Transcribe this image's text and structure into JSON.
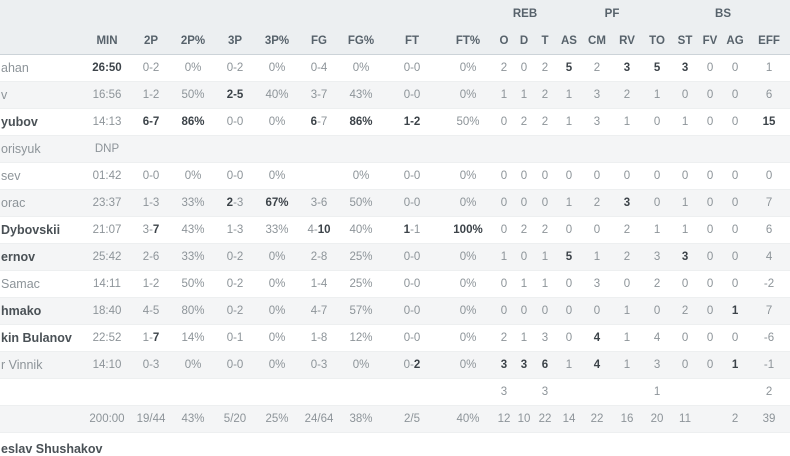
{
  "table": {
    "group_headers": [
      {
        "label": "REB"
      },
      {
        "label": "PF"
      },
      {
        "label": "BS"
      }
    ],
    "columns": [
      "MIN",
      "2P",
      "2P%",
      "3P",
      "3P%",
      "FG",
      "FG%",
      "FT",
      "FT%",
      "O",
      "D",
      "T",
      "AS",
      "CM",
      "RV",
      "TO",
      "ST",
      "FV",
      "AG",
      "EFF"
    ],
    "rows": [
      {
        "name": "ahan",
        "name_bold": false,
        "type": "player",
        "cells": [
          "**26:50**",
          "0-2",
          "0%",
          "0-2",
          "0%",
          "0-4",
          "0%",
          "0-0",
          "0%",
          "2",
          "0",
          "2",
          "**5**",
          "2",
          "**3**",
          "**5**",
          "**3**",
          "0",
          "0",
          "1"
        ]
      },
      {
        "name": "v",
        "name_bold": false,
        "type": "player",
        "cells": [
          "16:56",
          "1-2",
          "50%",
          "**2-5**",
          "40%",
          "3-7",
          "43%",
          "0-0",
          "0%",
          "1",
          "1",
          "2",
          "1",
          "3",
          "2",
          "1",
          "0",
          "0",
          "0",
          "6"
        ]
      },
      {
        "name": "yubov",
        "name_bold": true,
        "type": "player",
        "cells": [
          "14:13",
          "**6-7**",
          "**86%**",
          "0-0",
          "0%",
          "**6**-7",
          "**86%**",
          "**1-2**",
          "50%",
          "0",
          "2",
          "2",
          "1",
          "3",
          "1",
          "0",
          "1",
          "0",
          "0",
          "**15**"
        ]
      },
      {
        "name": "orisyuk",
        "name_bold": false,
        "type": "player",
        "cells": [
          "DNP",
          "",
          "",
          "",
          "",
          "",
          "",
          "",
          "",
          "",
          "",
          "",
          "",
          "",
          "",
          "",
          "",
          "",
          "",
          ""
        ]
      },
      {
        "name": "sev",
        "name_bold": false,
        "type": "player",
        "cells": [
          "01:42",
          "0-0",
          "0%",
          "0-0",
          "0%",
          "",
          "0%",
          "0-0",
          "0%",
          "0",
          "0",
          "0",
          "0",
          "0",
          "0",
          "0",
          "0",
          "0",
          "0",
          "0"
        ]
      },
      {
        "name": "orac",
        "name_bold": false,
        "type": "player",
        "cells": [
          "23:37",
          "1-3",
          "33%",
          "**2**-3",
          "**67%**",
          "3-6",
          "50%",
          "0-0",
          "0%",
          "0",
          "0",
          "0",
          "1",
          "2",
          "**3**",
          "0",
          "1",
          "0",
          "0",
          "7"
        ]
      },
      {
        "name": "Dybovskii",
        "name_bold": true,
        "type": "player",
        "cells": [
          "21:07",
          "3-**7**",
          "43%",
          "1-3",
          "33%",
          "4-**10**",
          "40%",
          "**1**-1",
          "**100%**",
          "0",
          "2",
          "2",
          "0",
          "0",
          "2",
          "1",
          "1",
          "0",
          "0",
          "6"
        ]
      },
      {
        "name": "ernov",
        "name_bold": true,
        "type": "player",
        "cells": [
          "25:42",
          "2-6",
          "33%",
          "0-2",
          "0%",
          "2-8",
          "25%",
          "0-0",
          "0%",
          "1",
          "0",
          "1",
          "**5**",
          "1",
          "2",
          "3",
          "**3**",
          "0",
          "0",
          "4"
        ]
      },
      {
        "name": "Samac",
        "name_bold": false,
        "type": "player",
        "cells": [
          "14:11",
          "1-2",
          "50%",
          "0-2",
          "0%",
          "1-4",
          "25%",
          "0-0",
          "0%",
          "0",
          "1",
          "1",
          "0",
          "3",
          "0",
          "2",
          "0",
          "0",
          "0",
          "-2"
        ]
      },
      {
        "name": "hmako",
        "name_bold": true,
        "type": "player",
        "cells": [
          "18:40",
          "4-5",
          "80%",
          "0-2",
          "0%",
          "4-7",
          "57%",
          "0-0",
          "0%",
          "0",
          "0",
          "0",
          "0",
          "0",
          "1",
          "0",
          "2",
          "0",
          "**1**",
          "7"
        ]
      },
      {
        "name": "kin Bulanov",
        "name_bold": true,
        "type": "player",
        "cells": [
          "22:52",
          "1-**7**",
          "14%",
          "0-1",
          "0%",
          "1-8",
          "12%",
          "0-0",
          "0%",
          "2",
          "1",
          "3",
          "0",
          "**4**",
          "1",
          "4",
          "0",
          "0",
          "0",
          "-6"
        ]
      },
      {
        "name": "r Vinnik",
        "name_bold": false,
        "type": "player",
        "cells": [
          "14:10",
          "0-3",
          "0%",
          "0-0",
          "0%",
          "0-3",
          "0%",
          "0-**2**",
          "0%",
          "**3**",
          "**3**",
          "**6**",
          "1",
          "**4**",
          "1",
          "3",
          "0",
          "0",
          "**1**",
          "-1"
        ]
      },
      {
        "name": "",
        "name_bold": false,
        "type": "team",
        "cells": [
          "",
          "",
          "",
          "",
          "",
          "",
          "",
          "",
          "",
          "3",
          "",
          "3",
          "",
          "",
          "",
          "1",
          "",
          "",
          "",
          "2"
        ]
      },
      {
        "name": "",
        "name_bold": false,
        "type": "totals",
        "cells": [
          "200:00",
          "19/44",
          "43%",
          "5/20",
          "25%",
          "24/64",
          "38%",
          "2/5",
          "40%",
          "12",
          "10",
          "22",
          "14",
          "22",
          "16",
          "20",
          "11",
          "",
          "2",
          "39"
        ]
      }
    ],
    "coach": "eslav Shushakov"
  },
  "colors": {
    "header_bg": "#eceff1",
    "alt_row_bg": "#f4f5f6",
    "regular_text": "#8d9499",
    "bold_text": "#3c4349",
    "header_text": "#57626b"
  }
}
